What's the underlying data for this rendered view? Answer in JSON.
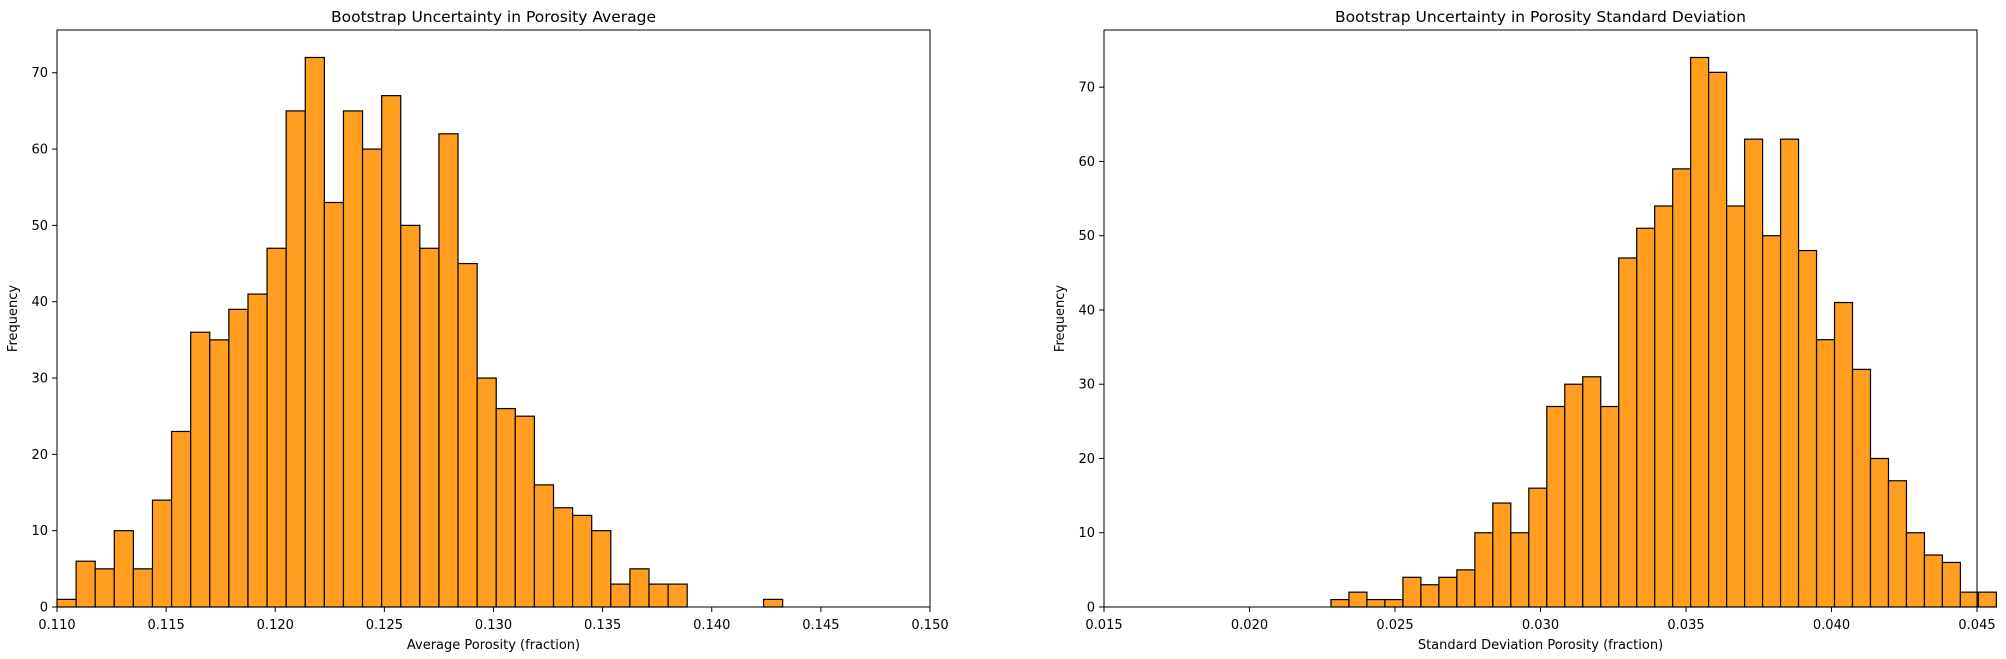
{
  "chart_data": [
    {
      "type": "bar",
      "title": "Bootstrap Uncertainty in Porosity Average",
      "xlabel": "Average Porosity (fraction)",
      "ylabel": "Frequency",
      "xlim": [
        0.11,
        0.15
      ],
      "ylim": [
        0,
        75.6
      ],
      "xticks": [
        "0.110",
        "0.115",
        "0.120",
        "0.125",
        "0.130",
        "0.135",
        "0.140",
        "0.145",
        "0.150"
      ],
      "yticks": [
        "0",
        "10",
        "20",
        "30",
        "40",
        "50",
        "60",
        "70"
      ],
      "bin_start": 0.11,
      "bin_width": 0.000875,
      "values": [
        1,
        6,
        5,
        10,
        5,
        14,
        23,
        36,
        35,
        39,
        41,
        47,
        65,
        72,
        53,
        65,
        60,
        67,
        50,
        47,
        62,
        45,
        30,
        26,
        25,
        16,
        13,
        12,
        10,
        3,
        5,
        3,
        3,
        0,
        0,
        0,
        0,
        1
      ],
      "bar_color": "#ff9e1f",
      "edge_color": "#000000",
      "grid": false
    },
    {
      "type": "bar",
      "title": "Bootstrap Uncertainty in Porosity Standard Deviation",
      "xlabel": "Standard Deviation Porosity (fraction)",
      "ylabel": "Frequency",
      "xlim": [
        0.015,
        0.045
      ],
      "ylim": [
        0,
        77.7
      ],
      "xticks": [
        "0.015",
        "0.020",
        "0.025",
        "0.030",
        "0.035",
        "0.040",
        "0.045"
      ],
      "yticks": [
        "0",
        "10",
        "20",
        "30",
        "40",
        "50",
        "60",
        "70"
      ],
      "bin_start": 0.0228,
      "bin_width": 0.000618,
      "values": [
        1,
        2,
        1,
        1,
        4,
        3,
        4,
        5,
        10,
        14,
        10,
        16,
        27,
        30,
        31,
        27,
        47,
        51,
        54,
        59,
        74,
        72,
        54,
        63,
        50,
        63,
        48,
        36,
        41,
        32,
        20,
        17,
        10,
        7,
        6,
        2,
        2
      ],
      "bar_color": "#ff9e1f",
      "edge_color": "#000000",
      "grid": false
    }
  ]
}
